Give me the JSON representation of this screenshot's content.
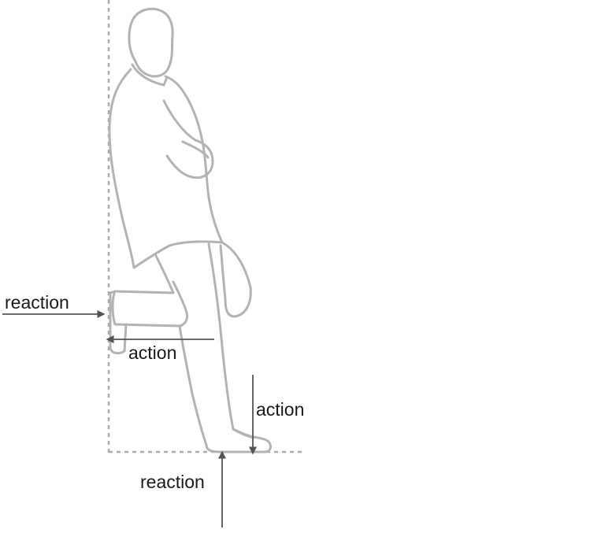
{
  "diagram": {
    "labels": {
      "wall_reaction": "reaction",
      "foot_action": "action",
      "ground_action": "action",
      "ground_reaction": "reaction"
    },
    "colors": {
      "figure_stroke": "#b3b3b3",
      "arrow": "#555555",
      "reference_line": "#aaaaaa",
      "background": "#ffffff"
    }
  }
}
